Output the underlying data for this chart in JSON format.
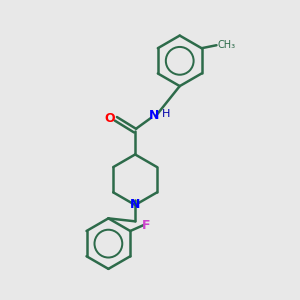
{
  "bg_color": "#e8e8e8",
  "bond_color": "#2d6b4a",
  "bond_width": 1.8,
  "atom_colors": {
    "N": "#0000ff",
    "O": "#ff0000",
    "F": "#cc44cc",
    "H": "#0000aa",
    "C": "#2d6b4a"
  },
  "font_size_atom": 9,
  "font_size_label": 8,
  "title": ""
}
